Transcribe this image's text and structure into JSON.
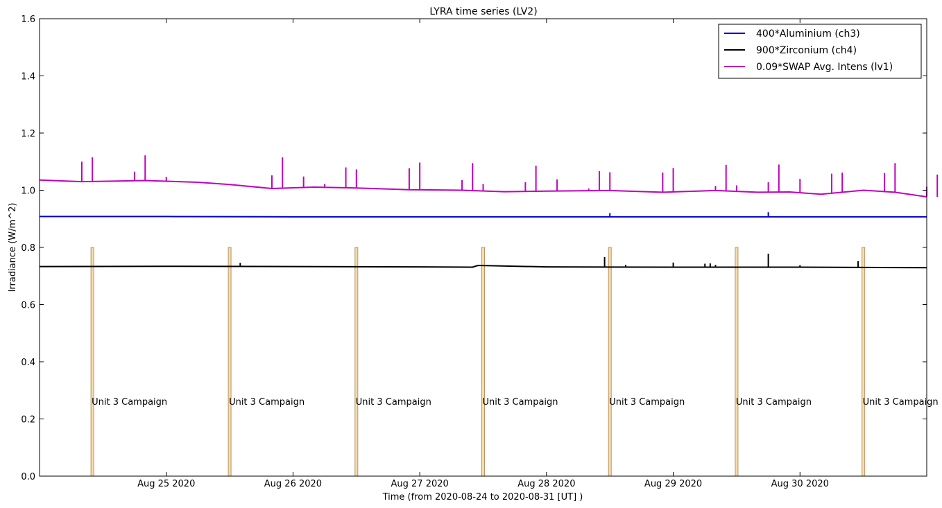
{
  "chart_data": {
    "type": "line",
    "title": "LYRA time series (LV2)",
    "xlabel": "Time (from 2020-08-24 to 2020-08-31 [UT] )",
    "ylabel": "Irradiance (W/m^2)",
    "xlim": [
      "2020-08-24 00:00",
      "2020-08-31 00:00"
    ],
    "ylim": [
      0.0,
      1.6
    ],
    "y_ticks": [
      "0.0",
      "0.2",
      "0.4",
      "0.6",
      "0.8",
      "1.0",
      "1.2",
      "1.4",
      "1.6"
    ],
    "y_tick_values": [
      0.0,
      0.2,
      0.4,
      0.6,
      0.8,
      1.0,
      1.2,
      1.4,
      1.6
    ],
    "x_ticks": [
      "Aug 25 2020",
      "Aug 26 2020",
      "Aug 27 2020",
      "Aug 28 2020",
      "Aug 29 2020",
      "Aug 30 2020"
    ],
    "x_tick_values": [
      "2020-08-25 00:00",
      "2020-08-26 00:00",
      "2020-08-27 00:00",
      "2020-08-28 00:00",
      "2020-08-29 00:00",
      "2020-08-30 00:00"
    ],
    "grid": false,
    "legend_position": "top-right",
    "series": [
      {
        "name": "400*Aluminium (ch3)",
        "color": "#0000cc",
        "baseline": [
          [
            "2020-08-24 00:00",
            0.908
          ],
          [
            "2020-08-25 00:00",
            0.908
          ],
          [
            "2020-08-26 00:00",
            0.907
          ],
          [
            "2020-08-27 00:00",
            0.907
          ],
          [
            "2020-08-28 00:00",
            0.907
          ],
          [
            "2020-08-29 00:00",
            0.907
          ],
          [
            "2020-08-30 00:00",
            0.907
          ],
          [
            "2020-08-31 00:00",
            0.907
          ]
        ],
        "spikes": [
          [
            "2020-08-28 12:00",
            0.92
          ],
          [
            "2020-08-29 18:00",
            0.923
          ]
        ]
      },
      {
        "name": "900*Zirconium (ch4)",
        "color": "#000000",
        "baseline": [
          [
            "2020-08-24 00:00",
            0.733
          ],
          [
            "2020-08-25 00:00",
            0.734
          ],
          [
            "2020-08-26 00:00",
            0.733
          ],
          [
            "2020-08-27 00:00",
            0.732
          ],
          [
            "2020-08-27 10:00",
            0.731
          ],
          [
            "2020-08-27 11:00",
            0.737
          ],
          [
            "2020-08-28 00:00",
            0.732
          ],
          [
            "2020-08-29 00:00",
            0.731
          ],
          [
            "2020-08-30 00:00",
            0.731
          ],
          [
            "2020-08-31 00:00",
            0.729
          ]
        ],
        "spikes": [
          [
            "2020-08-25 14:00",
            0.746
          ],
          [
            "2020-08-28 11:00",
            0.766
          ],
          [
            "2020-08-28 15:00",
            0.739
          ],
          [
            "2020-08-29 00:00",
            0.747
          ],
          [
            "2020-08-29 06:00",
            0.743
          ],
          [
            "2020-08-29 07:00",
            0.744
          ],
          [
            "2020-08-29 08:00",
            0.739
          ],
          [
            "2020-08-29 18:00",
            0.778
          ],
          [
            "2020-08-30 00:00",
            0.738
          ],
          [
            "2020-08-30 11:00",
            0.752
          ]
        ]
      },
      {
        "name": "0.09*SWAP Avg. Intens (lv1)",
        "color": "#c000c0",
        "baseline": [
          [
            "2020-08-24 00:00",
            1.036
          ],
          [
            "2020-08-24 08:00",
            1.03
          ],
          [
            "2020-08-24 20:00",
            1.034
          ],
          [
            "2020-08-25 06:00",
            1.028
          ],
          [
            "2020-08-25 12:00",
            1.02
          ],
          [
            "2020-08-25 20:00",
            1.006
          ],
          [
            "2020-08-26 04:00",
            1.011
          ],
          [
            "2020-08-26 12:00",
            1.008
          ],
          [
            "2020-08-26 22:00",
            1.002
          ],
          [
            "2020-08-27 08:00",
            1.0
          ],
          [
            "2020-08-27 16:00",
            0.995
          ],
          [
            "2020-08-28 00:00",
            0.997
          ],
          [
            "2020-08-28 12:00",
            0.999
          ],
          [
            "2020-08-28 22:00",
            0.993
          ],
          [
            "2020-08-29 08:00",
            0.999
          ],
          [
            "2020-08-29 16:00",
            0.993
          ],
          [
            "2020-08-29 22:00",
            0.994
          ],
          [
            "2020-08-30 04:00",
            0.986
          ],
          [
            "2020-08-30 12:00",
            1.0
          ],
          [
            "2020-08-30 18:00",
            0.993
          ],
          [
            "2020-08-31 00:00",
            0.977
          ]
        ],
        "spikes": [
          [
            "2020-08-24 08:00",
            1.1
          ],
          [
            "2020-08-24 10:00",
            1.115
          ],
          [
            "2020-08-24 18:00",
            1.065
          ],
          [
            "2020-08-24 20:00",
            1.122
          ],
          [
            "2020-08-25 00:00",
            1.047
          ],
          [
            "2020-08-25 20:00",
            1.052
          ],
          [
            "2020-08-25 22:00",
            1.115
          ],
          [
            "2020-08-26 02:00",
            1.048
          ],
          [
            "2020-08-26 06:00",
            1.022
          ],
          [
            "2020-08-26 10:00",
            1.08
          ],
          [
            "2020-08-26 12:00",
            1.073
          ],
          [
            "2020-08-26 22:00",
            1.077
          ],
          [
            "2020-08-27 00:00",
            1.097
          ],
          [
            "2020-08-27 08:00",
            1.036
          ],
          [
            "2020-08-27 10:00",
            1.095
          ],
          [
            "2020-08-27 12:00",
            1.022
          ],
          [
            "2020-08-27 20:00",
            1.028
          ],
          [
            "2020-08-27 22:00",
            1.086
          ],
          [
            "2020-08-28 02:00",
            1.038
          ],
          [
            "2020-08-28 08:00",
            1.006
          ],
          [
            "2020-08-28 10:00",
            1.067
          ],
          [
            "2020-08-28 12:00",
            1.063
          ],
          [
            "2020-08-28 22:00",
            1.062
          ],
          [
            "2020-08-29 00:00",
            1.078
          ],
          [
            "2020-08-29 08:00",
            1.015
          ],
          [
            "2020-08-29 10:00",
            1.089
          ],
          [
            "2020-08-29 12:00",
            1.017
          ],
          [
            "2020-08-29 18:00",
            1.028
          ],
          [
            "2020-08-29 20:00",
            1.09
          ],
          [
            "2020-08-30 00:00",
            1.04
          ],
          [
            "2020-08-30 06:00",
            1.058
          ],
          [
            "2020-08-30 08:00",
            1.062
          ],
          [
            "2020-08-30 16:00",
            1.06
          ],
          [
            "2020-08-30 18:00",
            1.095
          ],
          [
            "2020-08-31 00:00",
            1.012
          ],
          [
            "2020-08-31 02:00",
            1.055
          ],
          [
            "2020-08-31 04:00",
            1.005
          ]
        ]
      }
    ],
    "annotations": [
      {
        "label": "Unit 3 Campaign",
        "time": "2020-08-24 10:00",
        "ymax": 0.8
      },
      {
        "label": "Unit 3 Campaign",
        "time": "2020-08-25 12:00",
        "ymax": 0.8
      },
      {
        "label": "Unit 3 Campaign",
        "time": "2020-08-26 12:00",
        "ymax": 0.8
      },
      {
        "label": "Unit 3 Campaign",
        "time": "2020-08-27 12:00",
        "ymax": 0.8
      },
      {
        "label": "Unit 3 Campaign",
        "time": "2020-08-28 12:00",
        "ymax": 0.8
      },
      {
        "label": "Unit 3 Campaign",
        "time": "2020-08-29 12:00",
        "ymax": 0.8
      },
      {
        "label": "Unit 3 Campaign",
        "time": "2020-08-30 12:00",
        "ymax": 0.8
      }
    ],
    "campaign_bar_color": "#f5dca8",
    "campaign_bar_edge": "#b8956a"
  }
}
